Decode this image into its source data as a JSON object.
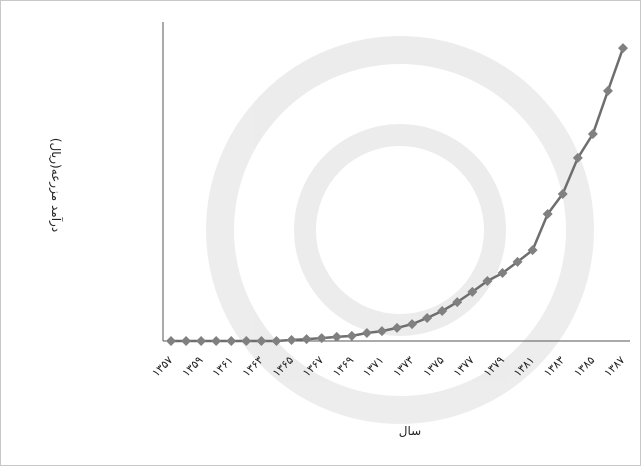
{
  "chart_data": {
    "type": "line",
    "x_label": "سال",
    "y_label": "درآمد مزرعه(ریال)",
    "categories": [
      "۱۳۵۷",
      null,
      "۱۳۵۹",
      null,
      "۱۳۶۱",
      null,
      "۱۳۶۳",
      null,
      "۱۳۶۵",
      null,
      "۱۳۶۷",
      null,
      "۱۳۶۹",
      null,
      "۱۳۷۱",
      null,
      "۱۳۷۳",
      null,
      "۱۳۷۵",
      null,
      "۱۳۷۷",
      null,
      "۱۳۷۹",
      null,
      "۱۳۸۱",
      null,
      "۱۳۸۳",
      null,
      "۱۳۸۵",
      null,
      "۱۳۸۷"
    ],
    "values": [
      0,
      0,
      0,
      0,
      0,
      0,
      0,
      0,
      0.3,
      0.6,
      0.9,
      1.3,
      1.6,
      2.5,
      3.1,
      4.1,
      5.3,
      7.2,
      9.4,
      12.2,
      15.4,
      18.8,
      21.3,
      24.8,
      28.5,
      39.8,
      46.1,
      57.4,
      64.9,
      78.4,
      91.8
    ],
    "color": "#6e6e6e",
    "marker_color": "#808080",
    "ylim": [
      0,
      100
    ]
  }
}
